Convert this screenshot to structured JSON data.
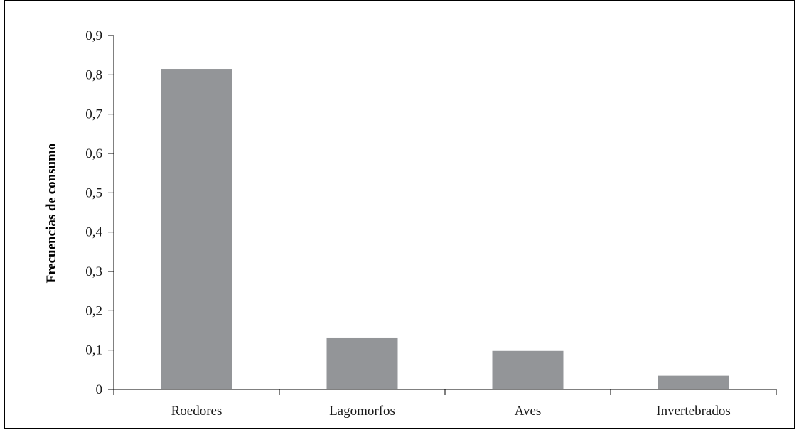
{
  "chart_data": {
    "type": "bar",
    "title": "",
    "xlabel": "",
    "ylabel": "Frecuencias de consumo",
    "categories": [
      "Roedores",
      "Lagomorfos",
      "Aves",
      "Invertebrados"
    ],
    "values": [
      0.815,
      0.132,
      0.098,
      0.035
    ],
    "ylim": [
      0,
      0.9
    ],
    "yticks": [
      "0",
      "0,1",
      "0,2",
      "0,3",
      "0,4",
      "0,5",
      "0,6",
      "0,7",
      "0,8",
      "0,9"
    ],
    "grid": false,
    "legend": "none",
    "bar_color": "#939598"
  }
}
